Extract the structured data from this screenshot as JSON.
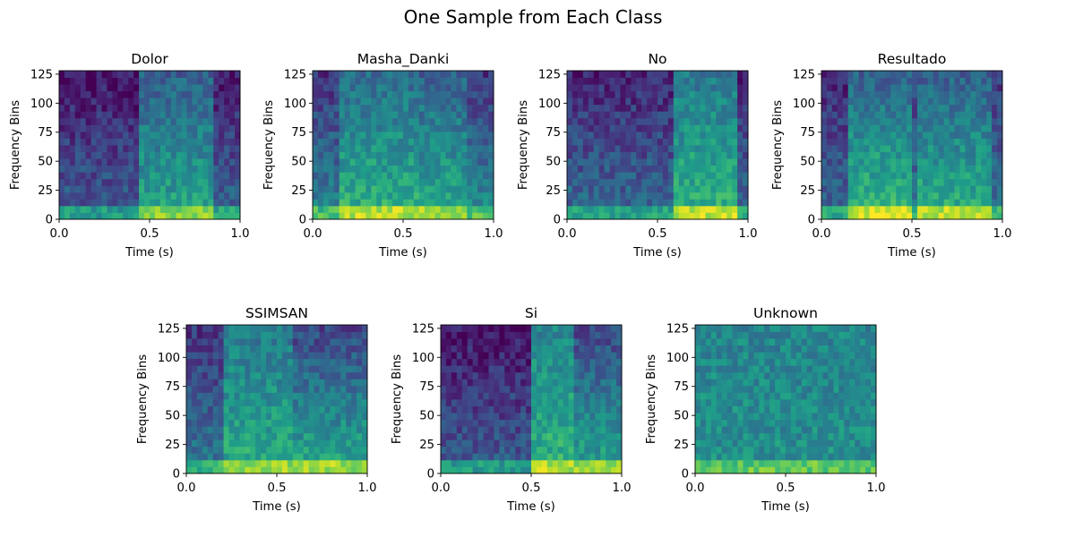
{
  "figure": {
    "title": "One Sample from Each Class",
    "colormap": "viridis"
  },
  "chart_data": [
    {
      "type": "heatmap",
      "title": "Dolor",
      "xlabel": "Time (s)",
      "ylabel": "Frequency Bins",
      "xlim": [
        0.0,
        1.0
      ],
      "ylim": [
        0,
        128
      ],
      "xticks": [
        "0.0",
        "0.5",
        "1.0"
      ],
      "yticks": [
        "0",
        "25",
        "50",
        "75",
        "100",
        "125"
      ],
      "segments": [
        [
          0.0,
          0.44,
          0.3,
          0.05
        ],
        [
          0.45,
          0.85,
          0.6,
          0.3
        ],
        [
          0.85,
          1.0,
          0.35,
          0.05
        ]
      ]
    },
    {
      "type": "heatmap",
      "title": "Masha_Danki",
      "xlabel": "Time (s)",
      "ylabel": "Frequency Bins",
      "xlim": [
        0.0,
        1.0
      ],
      "ylim": [
        0,
        128
      ],
      "xticks": [
        "0.0",
        "0.5",
        "1.0"
      ],
      "yticks": [
        "0",
        "25",
        "50",
        "75",
        "100",
        "125"
      ],
      "segments": [
        [
          0.0,
          0.15,
          0.45,
          0.15
        ],
        [
          0.15,
          0.58,
          0.65,
          0.35
        ],
        [
          0.58,
          0.85,
          0.62,
          0.3
        ],
        [
          0.85,
          1.0,
          0.5,
          0.15
        ]
      ]
    },
    {
      "type": "heatmap",
      "title": "No",
      "xlabel": "Time (s)",
      "ylabel": "Frequency Bins",
      "xlim": [
        0.0,
        1.0
      ],
      "ylim": [
        0,
        128
      ],
      "xticks": [
        "0.0",
        "0.5",
        "1.0"
      ],
      "yticks": [
        "0",
        "25",
        "50",
        "75",
        "100",
        "125"
      ],
      "segments": [
        [
          0.0,
          0.6,
          0.35,
          0.1
        ],
        [
          0.6,
          0.95,
          0.65,
          0.4
        ],
        [
          0.95,
          1.0,
          0.35,
          0.1
        ]
      ]
    },
    {
      "type": "heatmap",
      "title": "Resultado",
      "xlabel": "Time (s)",
      "ylabel": "Frequency Bins",
      "xlim": [
        0.0,
        1.0
      ],
      "ylim": [
        0,
        128
      ],
      "xticks": [
        "0.0",
        "0.5",
        "1.0"
      ],
      "yticks": [
        "0",
        "25",
        "50",
        "75",
        "100",
        "125"
      ],
      "segments": [
        [
          0.0,
          0.15,
          0.35,
          0.1
        ],
        [
          0.15,
          0.5,
          0.7,
          0.3
        ],
        [
          0.52,
          0.95,
          0.65,
          0.3
        ],
        [
          0.95,
          1.0,
          0.4,
          0.15
        ]
      ]
    },
    {
      "type": "heatmap",
      "title": "SSIMSAN",
      "xlabel": "Time (s)",
      "ylabel": "Frequency Bins",
      "xlim": [
        0.0,
        1.0
      ],
      "ylim": [
        0,
        128
      ],
      "xticks": [
        "0.0",
        "0.5",
        "1.0"
      ],
      "yticks": [
        "0",
        "25",
        "50",
        "75",
        "100",
        "125"
      ],
      "segments": [
        [
          0.0,
          0.22,
          0.4,
          0.15
        ],
        [
          0.22,
          0.6,
          0.62,
          0.4
        ],
        [
          0.6,
          1.0,
          0.62,
          0.2
        ]
      ]
    },
    {
      "type": "heatmap",
      "title": "Si",
      "xlabel": "Time (s)",
      "ylabel": "Frequency Bins",
      "xlim": [
        0.0,
        1.0
      ],
      "ylim": [
        0,
        128
      ],
      "xticks": [
        "0.0",
        "0.5",
        "1.0"
      ],
      "yticks": [
        "0",
        "25",
        "50",
        "75",
        "100",
        "125"
      ],
      "segments": [
        [
          0.0,
          0.5,
          0.3,
          0.05
        ],
        [
          0.5,
          0.75,
          0.65,
          0.45
        ],
        [
          0.75,
          1.0,
          0.6,
          0.2
        ]
      ]
    },
    {
      "type": "heatmap",
      "title": "Unknown",
      "xlabel": "Time (s)",
      "ylabel": "Frequency Bins",
      "xlim": [
        0.0,
        1.0
      ],
      "ylim": [
        0,
        128
      ],
      "xticks": [
        "0.0",
        "0.5",
        "1.0"
      ],
      "yticks": [
        "0",
        "25",
        "50",
        "75",
        "100",
        "125"
      ],
      "segments": [
        [
          0.0,
          1.0,
          0.5,
          0.45
        ]
      ]
    }
  ]
}
